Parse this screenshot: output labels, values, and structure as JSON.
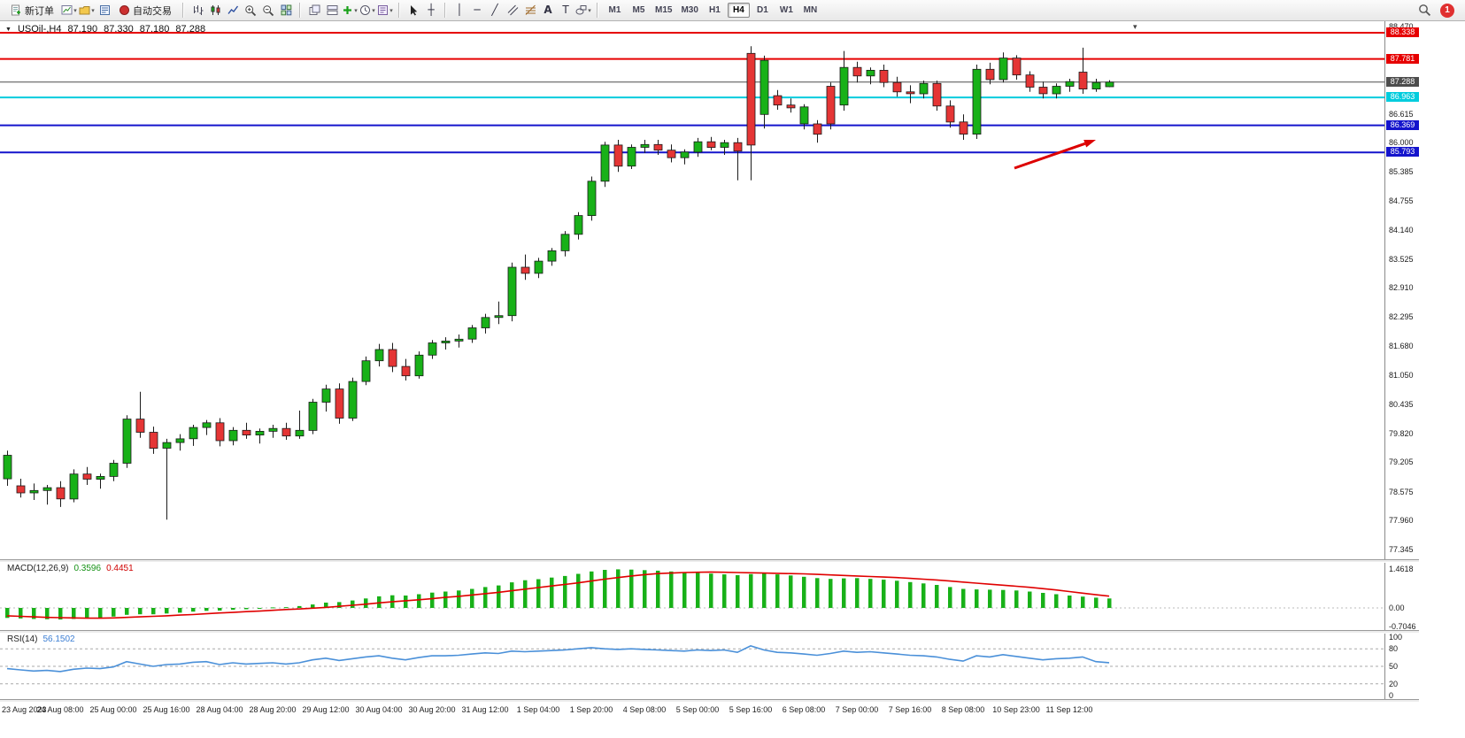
{
  "toolbar": {
    "new_order_label": "新订单",
    "autotrading_label": "自动交易",
    "timeframes": [
      "M1",
      "M5",
      "M15",
      "M30",
      "H1",
      "H4",
      "D1",
      "W1",
      "MN"
    ],
    "active_timeframe": "H4",
    "notification_badge": "1"
  },
  "chart_header": {
    "symbol": "USOil-,H4",
    "open": "87.190",
    "high": "87.330",
    "low": "87.180",
    "close": "87.288"
  },
  "price_axis": {
    "ticks": [
      "88.470",
      "86.615",
      "86.000",
      "85.385",
      "84.755",
      "84.140",
      "83.525",
      "82.910",
      "82.295",
      "81.680",
      "81.050",
      "80.435",
      "79.820",
      "79.205",
      "78.575",
      "77.960",
      "77.345"
    ],
    "levels": [
      {
        "value": "88.338",
        "color": "#e60000",
        "width": 2
      },
      {
        "value": "87.781",
        "color": "#e60000",
        "width": 2
      },
      {
        "value": "87.288",
        "color": "#4d4d4d",
        "width": 1
      },
      {
        "value": "86.963",
        "color": "#00ccdd",
        "width": 2
      },
      {
        "value": "86.369",
        "color": "#1414cc",
        "width": 2
      },
      {
        "value": "85.793",
        "color": "#1414cc",
        "width": 2
      }
    ]
  },
  "macd_panel": {
    "label": "MACD(12,26,9)",
    "main_value": "0.3596",
    "signal_value": "0.4451",
    "axis": [
      "1.4618",
      "0.00",
      "-0.7046"
    ]
  },
  "rsi_panel": {
    "label": "RSI(14)",
    "value": "56.1502",
    "axis": [
      "100",
      "80",
      "50",
      "20",
      "0"
    ]
  },
  "time_axis": [
    "23 Aug 2023",
    "24 Aug 08:00",
    "25 Aug 00:00",
    "25 Aug 16:00",
    "28 Aug 04:00",
    "28 Aug 20:00",
    "29 Aug 12:00",
    "30 Aug 04:00",
    "30 Aug 20:00",
    "31 Aug 12:00",
    "1 Sep 04:00",
    "1 Sep 20:00",
    "4 Sep 08:00",
    "5 Sep 00:00",
    "5 Sep 16:00",
    "6 Sep 08:00",
    "7 Sep 00:00",
    "7 Sep 16:00",
    "8 Sep 08:00",
    "10 Sep 23:00",
    "11 Sep 12:00"
  ],
  "chart_data": {
    "type": "candlestick",
    "title": "USOil H4",
    "ylim": [
      77.345,
      88.47
    ],
    "colors": {
      "bull": "#18b118",
      "bear": "#e53535",
      "wick": "#1c1c1c",
      "macd_hist": "#18b118",
      "macd_signal": "#e00000",
      "rsi": "#4a90d9"
    },
    "levels": [
      88.338,
      87.781,
      87.288,
      86.963,
      86.369,
      85.793
    ],
    "rsi_levels": [
      80,
      50,
      20
    ],
    "ohlc": [
      [
        78.85,
        79.45,
        78.7,
        79.35
      ],
      [
        78.7,
        78.85,
        78.45,
        78.55
      ],
      [
        78.55,
        78.75,
        78.4,
        78.6
      ],
      [
        78.6,
        78.72,
        78.3,
        78.66
      ],
      [
        78.66,
        78.8,
        78.25,
        78.42
      ],
      [
        78.42,
        79.05,
        78.35,
        78.95
      ],
      [
        78.95,
        79.1,
        78.72,
        78.84
      ],
      [
        78.84,
        78.96,
        78.64,
        78.9
      ],
      [
        78.9,
        79.25,
        78.8,
        79.18
      ],
      [
        79.18,
        80.2,
        79.08,
        80.12
      ],
      [
        80.12,
        80.7,
        79.72,
        79.84
      ],
      [
        79.84,
        79.96,
        79.38,
        79.5
      ],
      [
        79.5,
        79.7,
        77.98,
        79.62
      ],
      [
        79.62,
        79.8,
        79.45,
        79.7
      ],
      [
        79.7,
        80.0,
        79.55,
        79.94
      ],
      [
        79.94,
        80.1,
        79.78,
        80.04
      ],
      [
        80.04,
        80.14,
        79.54,
        79.66
      ],
      [
        79.66,
        79.95,
        79.56,
        79.88
      ],
      [
        79.88,
        80.04,
        79.7,
        79.78
      ],
      [
        79.78,
        79.92,
        79.6,
        79.86
      ],
      [
        79.86,
        80.0,
        79.72,
        79.92
      ],
      [
        79.92,
        80.04,
        79.68,
        79.76
      ],
      [
        79.76,
        80.3,
        79.7,
        79.88
      ],
      [
        79.88,
        80.55,
        79.8,
        80.48
      ],
      [
        80.48,
        80.85,
        80.28,
        80.76
      ],
      [
        80.76,
        80.88,
        80.02,
        80.14
      ],
      [
        80.14,
        81.0,
        80.08,
        80.92
      ],
      [
        80.92,
        81.45,
        80.84,
        81.36
      ],
      [
        81.36,
        81.72,
        81.24,
        81.6
      ],
      [
        81.6,
        81.74,
        81.12,
        81.24
      ],
      [
        81.24,
        81.4,
        80.94,
        81.04
      ],
      [
        81.04,
        81.56,
        80.98,
        81.48
      ],
      [
        81.48,
        81.8,
        81.4,
        81.74
      ],
      [
        81.74,
        81.86,
        81.6,
        81.78
      ],
      [
        81.78,
        81.92,
        81.64,
        81.82
      ],
      [
        81.82,
        82.12,
        81.74,
        82.06
      ],
      [
        82.06,
        82.36,
        81.94,
        82.28
      ],
      [
        82.28,
        82.62,
        82.14,
        82.32
      ],
      [
        82.32,
        83.45,
        82.2,
        83.35
      ],
      [
        83.35,
        83.62,
        83.08,
        83.22
      ],
      [
        83.22,
        83.55,
        83.12,
        83.48
      ],
      [
        83.48,
        83.76,
        83.38,
        83.7
      ],
      [
        83.7,
        84.12,
        83.58,
        84.05
      ],
      [
        84.05,
        84.52,
        83.94,
        84.45
      ],
      [
        84.45,
        85.28,
        84.34,
        85.18
      ],
      [
        85.18,
        86.02,
        85.06,
        85.95
      ],
      [
        85.95,
        86.06,
        85.38,
        85.5
      ],
      [
        85.5,
        85.96,
        85.44,
        85.9
      ],
      [
        85.9,
        86.06,
        85.78,
        85.96
      ],
      [
        85.96,
        86.06,
        85.74,
        85.84
      ],
      [
        85.84,
        85.96,
        85.58,
        85.68
      ],
      [
        85.68,
        85.86,
        85.54,
        85.8
      ],
      [
        85.8,
        86.1,
        85.7,
        86.02
      ],
      [
        86.02,
        86.12,
        85.84,
        85.9
      ],
      [
        85.9,
        86.06,
        85.74,
        86.0
      ],
      [
        86.0,
        86.1,
        85.2,
        85.82
      ],
      [
        87.9,
        88.05,
        85.2,
        85.95
      ],
      [
        86.6,
        87.85,
        86.3,
        87.75
      ],
      [
        87.0,
        87.12,
        86.7,
        86.8
      ],
      [
        86.8,
        86.94,
        86.64,
        86.74
      ],
      [
        86.4,
        86.82,
        86.28,
        86.76
      ],
      [
        86.4,
        86.48,
        86.0,
        86.18
      ],
      [
        87.2,
        87.28,
        86.28,
        86.4
      ],
      [
        86.8,
        87.95,
        86.68,
        87.6
      ],
      [
        87.6,
        87.72,
        87.28,
        87.42
      ],
      [
        87.42,
        87.6,
        87.24,
        87.54
      ],
      [
        87.54,
        87.66,
        87.18,
        87.28
      ],
      [
        87.28,
        87.4,
        86.98,
        87.08
      ],
      [
        87.08,
        87.22,
        86.84,
        87.04
      ],
      [
        87.04,
        87.32,
        86.94,
        87.26
      ],
      [
        87.26,
        87.32,
        86.68,
        86.78
      ],
      [
        86.78,
        86.9,
        86.32,
        86.44
      ],
      [
        86.44,
        86.6,
        86.06,
        86.18
      ],
      [
        86.18,
        87.66,
        86.08,
        87.56
      ],
      [
        87.56,
        87.7,
        87.24,
        87.34
      ],
      [
        87.34,
        87.92,
        87.28,
        87.8
      ],
      [
        87.8,
        87.86,
        87.34,
        87.44
      ],
      [
        87.44,
        87.52,
        87.08,
        87.18
      ],
      [
        87.18,
        87.3,
        86.94,
        87.04
      ],
      [
        87.04,
        87.26,
        86.94,
        87.2
      ],
      [
        87.2,
        87.36,
        87.08,
        87.3
      ],
      [
        87.5,
        88.02,
        87.04,
        87.14
      ],
      [
        87.14,
        87.36,
        87.08,
        87.28
      ],
      [
        87.19,
        87.33,
        87.18,
        87.288
      ]
    ],
    "macd_histogram": [
      -0.38,
      -0.4,
      -0.42,
      -0.43,
      -0.44,
      -0.42,
      -0.4,
      -0.37,
      -0.33,
      -0.26,
      -0.24,
      -0.24,
      -0.21,
      -0.18,
      -0.14,
      -0.11,
      -0.1,
      -0.07,
      -0.05,
      -0.02,
      0.02,
      0.03,
      0.07,
      0.13,
      0.2,
      0.22,
      0.28,
      0.36,
      0.44,
      0.48,
      0.47,
      0.52,
      0.58,
      0.62,
      0.66,
      0.72,
      0.79,
      0.85,
      0.97,
      1.05,
      1.09,
      1.15,
      1.21,
      1.29,
      1.38,
      1.44,
      1.4618,
      1.45,
      1.43,
      1.41,
      1.38,
      1.35,
      1.33,
      1.3,
      1.27,
      1.24,
      1.28,
      1.31,
      1.27,
      1.23,
      1.18,
      1.13,
      1.1,
      1.12,
      1.13,
      1.1,
      1.07,
      1.03,
      0.98,
      0.93,
      0.87,
      0.79,
      0.72,
      0.7,
      0.69,
      0.68,
      0.66,
      0.62,
      0.57,
      0.52,
      0.47,
      0.43,
      0.39,
      0.3596
    ],
    "macd_signal": [
      -0.3,
      -0.32,
      -0.34,
      -0.36,
      -0.37,
      -0.38,
      -0.39,
      -0.39,
      -0.38,
      -0.36,
      -0.34,
      -0.32,
      -0.3,
      -0.27,
      -0.25,
      -0.22,
      -0.19,
      -0.17,
      -0.14,
      -0.12,
      -0.09,
      -0.06,
      -0.04,
      -0.01,
      0.02,
      0.06,
      0.1,
      0.14,
      0.19,
      0.23,
      0.27,
      0.31,
      0.35,
      0.4,
      0.44,
      0.49,
      0.54,
      0.59,
      0.65,
      0.71,
      0.77,
      0.83,
      0.89,
      0.95,
      1.02,
      1.09,
      1.15,
      1.21,
      1.26,
      1.3,
      1.32,
      1.34,
      1.35,
      1.36,
      1.35,
      1.34,
      1.33,
      1.32,
      1.31,
      1.3,
      1.29,
      1.27,
      1.25,
      1.23,
      1.21,
      1.19,
      1.17,
      1.15,
      1.12,
      1.09,
      1.06,
      1.02,
      0.98,
      0.94,
      0.9,
      0.86,
      0.82,
      0.78,
      0.73,
      0.68,
      0.62,
      0.56,
      0.5,
      0.4451
    ],
    "rsi_values": [
      46,
      44,
      42,
      43,
      41,
      45,
      47,
      46,
      49,
      58,
      54,
      50,
      53,
      54,
      57,
      58,
      53,
      56,
      54,
      55,
      56,
      54,
      56,
      61,
      64,
      60,
      63,
      66,
      68,
      64,
      61,
      65,
      68,
      68,
      69,
      71,
      73,
      72,
      76,
      75,
      76,
      77,
      78,
      80,
      82,
      80,
      79,
      80,
      79,
      78,
      77,
      76,
      78,
      77,
      78,
      74,
      85,
      78,
      74,
      73,
      71,
      69,
      72,
      76,
      74,
      75,
      73,
      71,
      69,
      68,
      66,
      62,
      59,
      68,
      66,
      70,
      67,
      64,
      61,
      63,
      64,
      66,
      58,
      56.15
    ],
    "arrow_annotation": {
      "color": "#dd0000",
      "from": [
        1146,
        166
      ],
      "to": [
        1238,
        134
      ]
    }
  }
}
